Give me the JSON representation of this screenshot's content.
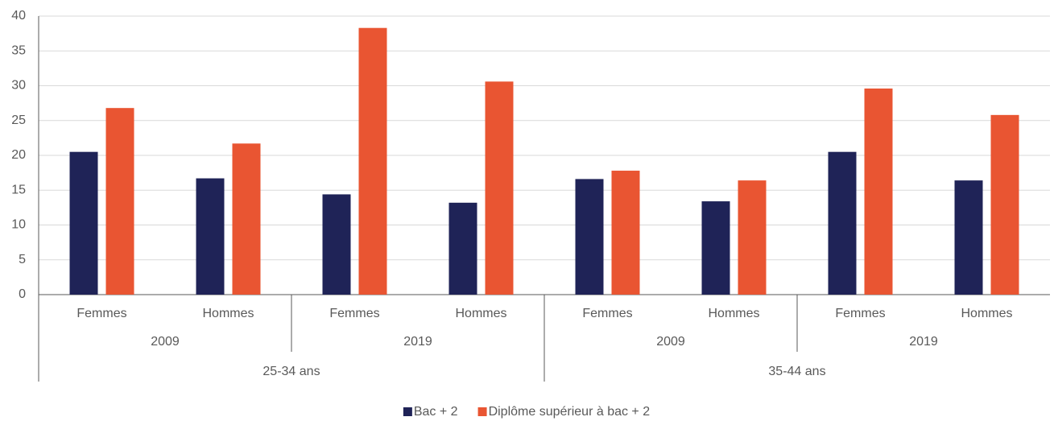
{
  "chart_data": {
    "type": "bar",
    "categories": [
      "Femmes",
      "Hommes",
      "Femmes",
      "Hommes",
      "Femmes",
      "Hommes",
      "Femmes",
      "Hommes"
    ],
    "category_groups": [
      {
        "labels": [
          "2009",
          "2019",
          "2009",
          "2019"
        ]
      },
      {
        "labels": [
          "25-34 ans",
          "35-44 ans"
        ]
      }
    ],
    "series": [
      {
        "name": "Bac + 2",
        "color": "#1f2357",
        "values": [
          20.5,
          16.7,
          14.4,
          13.2,
          16.6,
          13.4,
          20.5,
          16.4
        ]
      },
      {
        "name": "Diplôme supérieur à bac + 2",
        "color": "#e95532",
        "values": [
          26.8,
          21.7,
          38.3,
          30.6,
          17.8,
          16.4,
          29.6,
          25.8
        ]
      }
    ],
    "ylim": [
      0,
      40
    ],
    "yticks": [
      0,
      5,
      10,
      15,
      20,
      25,
      30,
      35,
      40
    ],
    "grid": true,
    "legend": "bottom"
  }
}
